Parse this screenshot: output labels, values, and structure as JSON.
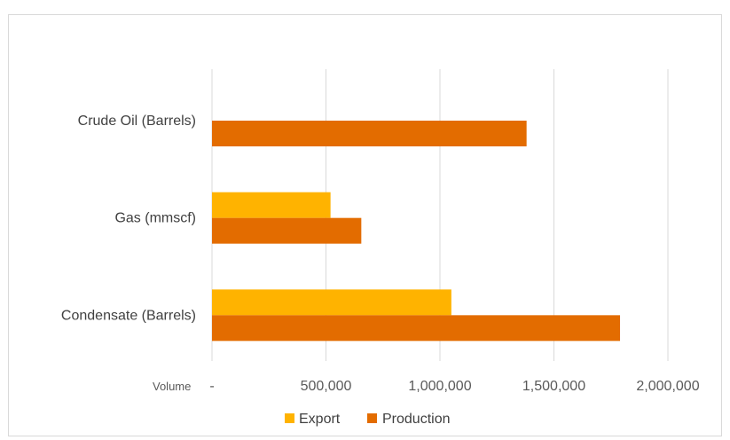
{
  "chart_data": {
    "type": "bar",
    "orientation": "horizontal",
    "categories": [
      "Crude Oil (Barrels)",
      "Gas (mmscf)",
      "Condensate (Barrels)"
    ],
    "series": [
      {
        "name": "Export",
        "color": "#FFB300",
        "values": [
          0,
          520000,
          1050000
        ]
      },
      {
        "name": "Production",
        "color": "#E36C00",
        "values": [
          1380000,
          655000,
          1790000
        ]
      }
    ],
    "xlabel": "Volume",
    "xlim": [
      0,
      2000000
    ],
    "xticks": [
      0,
      500000,
      1000000,
      1500000,
      2000000
    ],
    "xtick_labels": [
      "-",
      "500,000",
      "1,000,000",
      "1,500,000",
      "2,000,000"
    ],
    "grid": true,
    "legend_position": "bottom"
  }
}
